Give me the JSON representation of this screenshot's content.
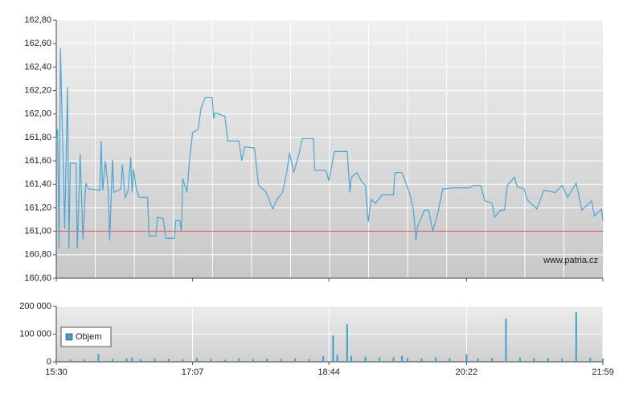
{
  "chart_data": [
    {
      "type": "line",
      "x": [
        "15:30",
        "15:31",
        "15:32",
        "15:33",
        "15:36",
        "15:38",
        "15:39",
        "15:40",
        "15:44",
        "15:45",
        "15:47",
        "15:49",
        "15:51",
        "15:53",
        "16:01",
        "16:02",
        "16:03",
        "16:05",
        "16:07",
        "16:08",
        "16:10",
        "16:11",
        "16:16",
        "16:17",
        "16:19",
        "16:21",
        "16:23",
        "16:24",
        "16:25",
        "16:27",
        "16:29",
        "16:35",
        "16:36",
        "16:41",
        "16:42",
        "16:46",
        "16:48",
        "16:54",
        "16:55",
        "16:58",
        "16:59",
        "17:00",
        "17:03",
        "17:05",
        "17:07",
        "17:11",
        "17:13",
        "17:16",
        "17:21",
        "17:22",
        "17:23",
        "17:30",
        "17:32",
        "17:40",
        "17:42",
        "17:44",
        "17:51",
        "17:54",
        "17:59",
        "18:04",
        "18:07",
        "18:11",
        "18:14",
        "18:16",
        "18:19",
        "18:23",
        "18:25",
        "18:33",
        "18:34",
        "18:42",
        "18:44",
        "18:48",
        "18:57",
        "18:59",
        "19:00",
        "19:04",
        "19:07",
        "19:10",
        "19:12",
        "19:14",
        "19:17",
        "19:22",
        "19:30",
        "19:31",
        "19:36",
        "19:41",
        "19:44",
        "19:46",
        "19:47",
        "19:52",
        "19:55",
        "19:58",
        "20:02",
        "20:05",
        "20:13",
        "20:24",
        "20:27",
        "20:32",
        "20:35",
        "20:40",
        "20:42",
        "20:46",
        "20:49",
        "20:51",
        "20:56",
        "20:58",
        "21:03",
        "21:05",
        "21:12",
        "21:17",
        "21:25",
        "21:30",
        "21:34",
        "21:40",
        "21:44",
        "21:51",
        "21:53",
        "21:58",
        "21:59"
      ],
      "values": [
        161.77,
        161.87,
        160.85,
        162.56,
        161.02,
        162.23,
        160.85,
        161.58,
        161.58,
        160.85,
        161.66,
        160.93,
        161.41,
        161.36,
        161.35,
        161.77,
        161.35,
        161.6,
        161.35,
        160.92,
        161.61,
        161.33,
        161.36,
        161.57,
        161.29,
        161.34,
        161.63,
        161.33,
        161.53,
        161.36,
        161.29,
        161.29,
        160.96,
        160.96,
        161.12,
        161.11,
        160.94,
        160.94,
        161.09,
        161.09,
        161.0,
        161.45,
        161.33,
        161.63,
        161.84,
        161.87,
        162.05,
        162.14,
        162.14,
        161.96,
        162.01,
        161.98,
        161.77,
        161.77,
        161.6,
        161.72,
        161.71,
        161.39,
        161.34,
        161.19,
        161.27,
        161.33,
        161.5,
        161.67,
        161.5,
        161.67,
        161.79,
        161.79,
        161.52,
        161.52,
        161.43,
        161.68,
        161.68,
        161.33,
        161.46,
        161.5,
        161.43,
        161.39,
        161.08,
        161.27,
        161.24,
        161.31,
        161.31,
        161.5,
        161.5,
        161.34,
        161.2,
        160.92,
        161.04,
        161.18,
        161.18,
        161.0,
        161.18,
        161.36,
        161.37,
        161.37,
        161.39,
        161.39,
        161.26,
        161.24,
        161.12,
        161.18,
        161.18,
        161.39,
        161.46,
        161.38,
        161.36,
        161.27,
        161.19,
        161.35,
        161.33,
        161.39,
        161.29,
        161.41,
        161.18,
        161.26,
        161.13,
        161.19,
        161.09
      ],
      "color": "#4aa6d2",
      "xlim": [
        "15:30",
        "21:59"
      ],
      "xticks": [
        "15:30",
        "17:07",
        "18:44",
        "20:22",
        "21:59"
      ],
      "ylim": [
        160.6,
        162.8
      ],
      "yticks": [
        {
          "value": 160.6,
          "label": "160,60"
        },
        {
          "value": 160.8,
          "label": "160,80"
        },
        {
          "value": 161.0,
          "label": "161,00"
        },
        {
          "value": 161.2,
          "label": "161,20"
        },
        {
          "value": 161.4,
          "label": "161,40"
        },
        {
          "value": 161.6,
          "label": "161,60"
        },
        {
          "value": 161.8,
          "label": "161,80"
        },
        {
          "value": 162.0,
          "label": "162,00"
        },
        {
          "value": 162.2,
          "label": "162,20"
        },
        {
          "value": 162.4,
          "label": "162,40"
        },
        {
          "value": 162.6,
          "label": "162,60"
        },
        {
          "value": 162.8,
          "label": "162,80"
        }
      ],
      "reference_line": 161.0,
      "reference_color": "#e04040",
      "annotation": "www.patria.cz",
      "grid": true
    },
    {
      "type": "bar",
      "x": [
        "15:30",
        "15:40",
        "15:50",
        "16:00",
        "16:10",
        "16:20",
        "16:24",
        "16:30",
        "16:40",
        "16:50",
        "17:00",
        "17:10",
        "17:20",
        "17:30",
        "17:40",
        "17:50",
        "18:00",
        "18:10",
        "18:20",
        "18:30",
        "18:40",
        "18:47",
        "18:50",
        "18:57",
        "19:00",
        "19:10",
        "19:20",
        "19:30",
        "19:36",
        "19:40",
        "19:50",
        "20:00",
        "20:10",
        "20:22",
        "20:30",
        "20:40",
        "20:50",
        "21:00",
        "21:10",
        "21:20",
        "21:30",
        "21:40",
        "21:50",
        "21:59"
      ],
      "series": [
        {
          "name": "Objem",
          "color": "#3aa0c8",
          "values": [
            12000,
            8000,
            9000,
            28000,
            10000,
            12000,
            15000,
            10000,
            12000,
            11000,
            9000,
            14000,
            10000,
            8000,
            12000,
            9000,
            11000,
            10000,
            12000,
            9000,
            20000,
            95000,
            25000,
            135000,
            22000,
            18000,
            15000,
            16000,
            22000,
            14000,
            12000,
            15000,
            13000,
            28000,
            12000,
            14000,
            155000,
            15000,
            13000,
            14000,
            12000,
            180000,
            15000,
            12000
          ]
        }
      ],
      "xlim": [
        "15:30",
        "21:59"
      ],
      "xticks": [
        "15:30",
        "17:07",
        "18:44",
        "20:22",
        "21:59"
      ],
      "ylim": [
        0,
        200000
      ],
      "yticks": [
        0,
        {
          "value": 100000,
          "label": "100 000"
        },
        {
          "value": 200000,
          "label": "200 000"
        }
      ],
      "legend": "left",
      "grid": true
    }
  ]
}
